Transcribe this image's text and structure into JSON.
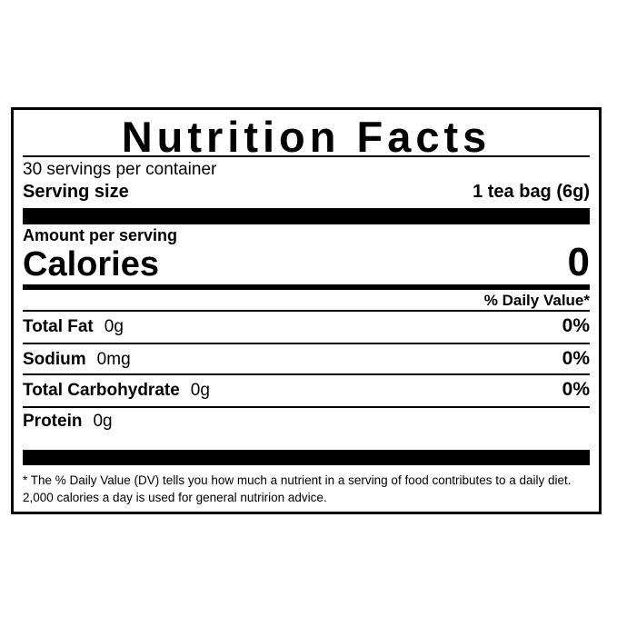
{
  "title": "Nutrition Facts",
  "servings": "30 servings per container",
  "serving_size": {
    "label": "Serving size",
    "value": "1 tea bag (6g)"
  },
  "amount_per_serving": "Amount per serving",
  "calories": {
    "label": "Calories",
    "value": "0"
  },
  "daily_value_header": "% Daily Value*",
  "nutrients": [
    {
      "name": "Total Fat",
      "amount": "0g",
      "dv": "0%"
    },
    {
      "name": "Sodium",
      "amount": "0mg",
      "dv": "0%"
    },
    {
      "name": "Total Carbohydrate",
      "amount": "0g",
      "dv": "0%"
    },
    {
      "name": "Protein",
      "amount": "0g",
      "dv": ""
    }
  ],
  "footnote": "* The % Daily Value (DV) tells you how much a nutrient in a serving of food contributes to a daily diet. 2,000 calories a day is used for general nutririon advice."
}
